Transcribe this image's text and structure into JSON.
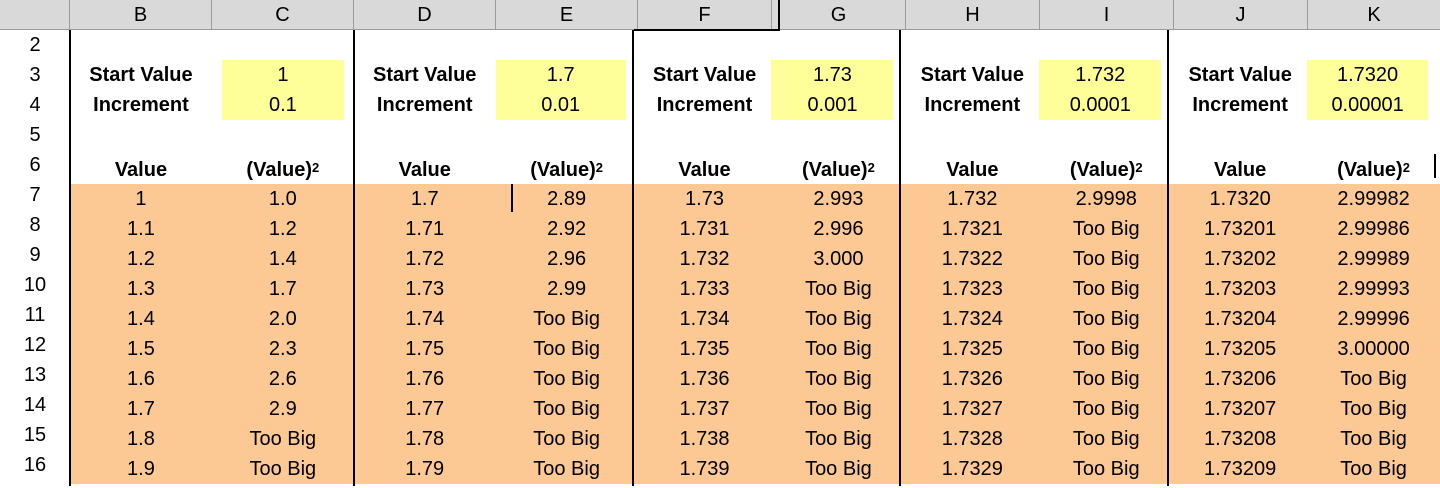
{
  "columns": [
    "B",
    "C",
    "D",
    "E",
    "F",
    "G",
    "H",
    "I",
    "J",
    "K"
  ],
  "row_numbers": [
    "2",
    "3",
    "4",
    "5",
    "6",
    "7",
    "8",
    "9",
    "10",
    "11",
    "12",
    "13",
    "14",
    "15",
    "16"
  ],
  "blocks": [
    {
      "start_label": "Start Value",
      "start_value": "1",
      "increment_label": "Increment",
      "increment_value": "0.1",
      "value_header": "Value",
      "square_header": "(Value)",
      "square_sup": "2",
      "values": [
        "1",
        "1.1",
        "1.2",
        "1.3",
        "1.4",
        "1.5",
        "1.6",
        "1.7",
        "1.8",
        "1.9"
      ],
      "squares": [
        "1.0",
        "1.2",
        "1.4",
        "1.7",
        "2.0",
        "2.3",
        "2.6",
        "2.9",
        "Too Big",
        "Too Big"
      ]
    },
    {
      "start_label": "Start Value",
      "start_value": "1.7",
      "increment_label": "Increment",
      "increment_value": "0.01",
      "value_header": "Value",
      "square_header": "(Value)",
      "square_sup": "2",
      "values": [
        "1.7",
        "1.71",
        "1.72",
        "1.73",
        "1.74",
        "1.75",
        "1.76",
        "1.77",
        "1.78",
        "1.79"
      ],
      "squares": [
        "2.89",
        "2.92",
        "2.96",
        "2.99",
        "Too Big",
        "Too Big",
        "Too Big",
        "Too Big",
        "Too Big",
        "Too Big"
      ]
    },
    {
      "start_label": "Start Value",
      "start_value": "1.73",
      "increment_label": "Increment",
      "increment_value": "0.001",
      "value_header": "Value",
      "square_header": "(Value)",
      "square_sup": "2",
      "values": [
        "1.73",
        "1.731",
        "1.732",
        "1.733",
        "1.734",
        "1.735",
        "1.736",
        "1.737",
        "1.738",
        "1.739"
      ],
      "squares": [
        "2.993",
        "2.996",
        "3.000",
        "Too Big",
        "Too Big",
        "Too Big",
        "Too Big",
        "Too Big",
        "Too Big",
        "Too Big"
      ]
    },
    {
      "start_label": "Start Value",
      "start_value": "1.732",
      "increment_label": "Increment",
      "increment_value": "0.0001",
      "value_header": "Value",
      "square_header": "(Value)",
      "square_sup": "2",
      "values": [
        "1.732",
        "1.7321",
        "1.7322",
        "1.7323",
        "1.7324",
        "1.7325",
        "1.7326",
        "1.7327",
        "1.7328",
        "1.7329"
      ],
      "squares": [
        "2.9998",
        "Too Big",
        "Too Big",
        "Too Big",
        "Too Big",
        "Too Big",
        "Too Big",
        "Too Big",
        "Too Big",
        "Too Big"
      ]
    },
    {
      "start_label": "Start Value",
      "start_value": "1.7320",
      "increment_label": "Increment",
      "increment_value": "0.00001",
      "value_header": "Value",
      "square_header": "(Value)",
      "square_sup": "2",
      "values": [
        "1.7320",
        "1.73201",
        "1.73202",
        "1.73203",
        "1.73204",
        "1.73205",
        "1.73206",
        "1.73207",
        "1.73208",
        "1.73209"
      ],
      "squares": [
        "2.99982",
        "2.99986",
        "2.99989",
        "2.99993",
        "2.99996",
        "3.00000",
        "Too Big",
        "Too Big",
        "Too Big",
        "Too Big"
      ]
    }
  ],
  "colors": {
    "yellow": "#ffff99",
    "orange": "#fcc894",
    "header_gray": "#d9d9d9"
  }
}
